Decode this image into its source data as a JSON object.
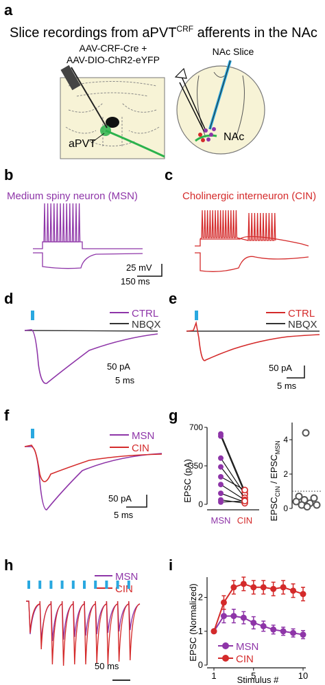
{
  "panels": {
    "a": {
      "letter": "a",
      "title_prefix": "Slice recordings from aPVT",
      "title_super": "CRF",
      "title_suffix": " afferents in the NAc",
      "virus_line1": "AAV-CRF-Cre +",
      "virus_line2": "AAV-DIO-ChR2-eYFP",
      "region_label": "aPVT",
      "slice_label": "NAc Slice",
      "nac_label": "NAc"
    },
    "b": {
      "letter": "b",
      "title": "Medium spiny neuron (MSN)"
    },
    "c": {
      "letter": "c",
      "title": "Cholinergic interneuron (CIN)",
      "scale_v": "25 mV",
      "scale_t": "150 ms"
    },
    "d": {
      "letter": "d",
      "legend_ctrl": "CTRL",
      "legend_nbqx": "NBQX",
      "scale_i": "50 pA",
      "scale_t": "5 ms"
    },
    "e": {
      "letter": "e",
      "legend_ctrl": "CTRL",
      "legend_nbqx": "NBQX",
      "scale_i": "50 pA",
      "scale_t": "5 ms"
    },
    "f": {
      "letter": "f",
      "legend_msn": "MSN",
      "legend_cin": "CIN",
      "scale_i": "50 pA",
      "scale_t": "5 ms"
    },
    "g": {
      "letter": "g",
      "ylabel": "EPSC (pA)",
      "ratio_label": "EPSC",
      "ratio_sub_num": "CIN",
      "ratio_sep": " / EPSC",
      "ratio_sub_den": "MSN",
      "xcat_msn": "MSN",
      "xcat_cin": "CIN"
    },
    "h": {
      "letter": "h",
      "legend_msn": "MSN",
      "legend_cin": "CIN",
      "scale_t": "50 ms"
    },
    "i": {
      "letter": "i",
      "ylabel": "EPSC (Normalized)",
      "xlabel": "Stimulus #",
      "legend_msn": "MSN",
      "legend_cin": "CIN"
    }
  },
  "colors": {
    "msn": "#8e35a8",
    "cin": "#d42a2a",
    "nbqx": "#333333",
    "light": "#29a8e0",
    "eyfp": "#2bb24c"
  },
  "chart_data": [
    {
      "type": "scatter",
      "panel": "g-left",
      "ylabel": "EPSC (pA)",
      "categories": [
        "MSN",
        "CIN"
      ],
      "ylim": [
        0,
        700
      ],
      "yticks": [
        0,
        350,
        700
      ],
      "pairs": [
        [
          640,
          120
        ],
        [
          620,
          100
        ],
        [
          420,
          90
        ],
        [
          340,
          60
        ],
        [
          250,
          130
        ],
        [
          180,
          40
        ],
        [
          100,
          20
        ],
        [
          40,
          10
        ],
        [
          20,
          30
        ]
      ]
    },
    {
      "type": "scatter",
      "panel": "g-right",
      "ylim": [
        0,
        5
      ],
      "yticks": [
        0,
        2,
        4
      ],
      "reference_line": 1,
      "values": [
        4.4,
        0.7,
        0.6,
        0.5,
        0.4,
        0.3,
        0.2,
        0.2,
        0.1
      ]
    },
    {
      "type": "line",
      "panel": "i",
      "xlabel": "Stimulus #",
      "ylabel": "EPSC (Normalized)",
      "xlim": [
        1,
        10
      ],
      "xticks": [
        1,
        5,
        10
      ],
      "ylim": [
        0,
        2.6
      ],
      "yticks": [
        0,
        1,
        2
      ],
      "x": [
        1,
        2,
        3,
        4,
        5,
        6,
        7,
        8,
        9,
        10
      ],
      "series": [
        {
          "name": "MSN",
          "values": [
            1.0,
            1.45,
            1.45,
            1.4,
            1.25,
            1.15,
            1.05,
            1.0,
            0.95,
            0.9
          ],
          "err": [
            0.05,
            0.2,
            0.2,
            0.18,
            0.18,
            0.15,
            0.13,
            0.12,
            0.12,
            0.12
          ]
        },
        {
          "name": "CIN",
          "values": [
            1.0,
            1.85,
            2.3,
            2.4,
            2.3,
            2.3,
            2.25,
            2.3,
            2.2,
            2.1
          ],
          "err": [
            0.05,
            0.2,
            0.2,
            0.2,
            0.2,
            0.2,
            0.2,
            0.2,
            0.2,
            0.2
          ]
        }
      ]
    }
  ]
}
